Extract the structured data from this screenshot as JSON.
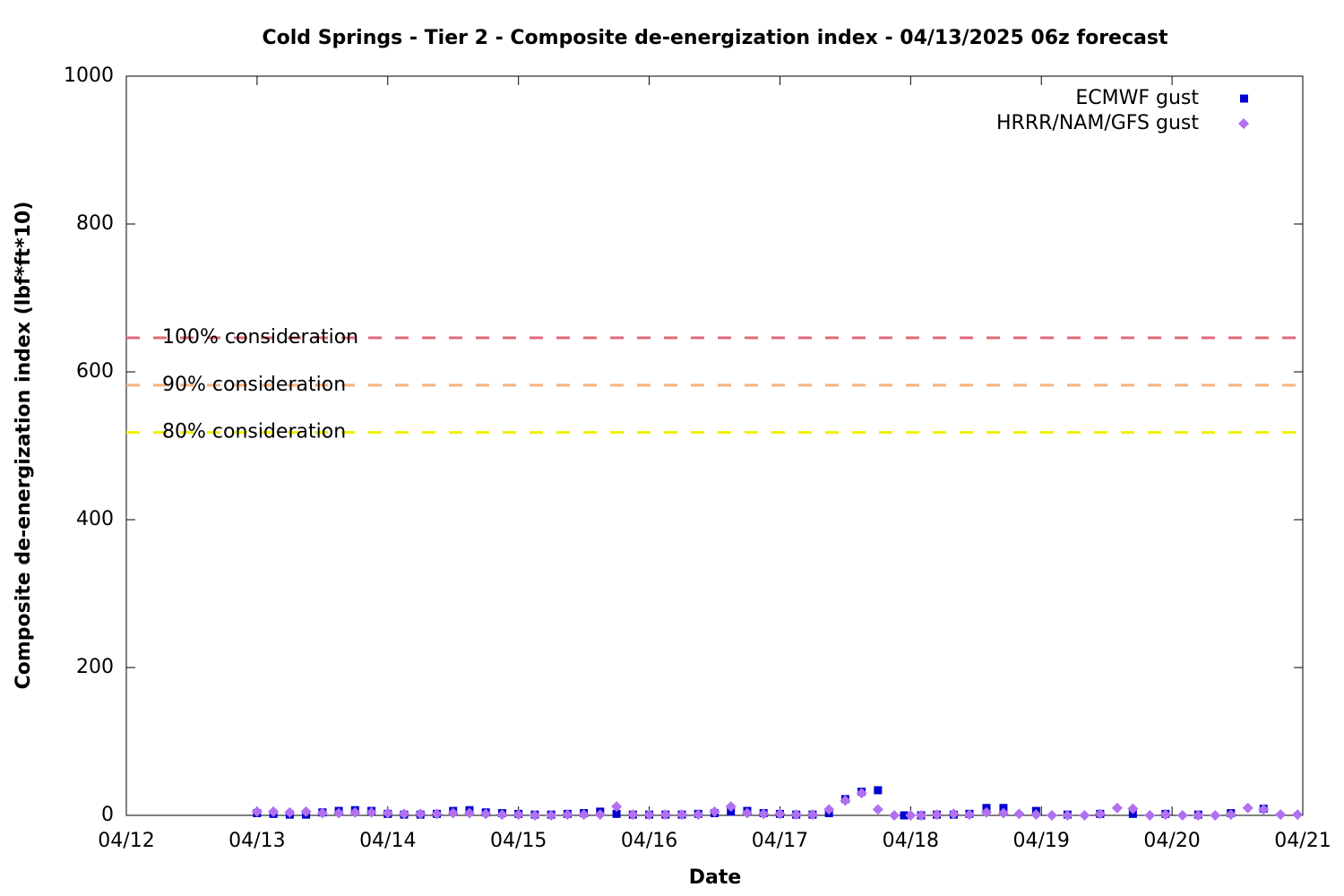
{
  "chart_data": {
    "type": "scatter",
    "title": "Cold Springs - Tier 2 - Composite de-energization index - 04/13/2025 06z forecast",
    "x_label": "Date",
    "y_label": "Composite de-energization index (lbf*ft*10)",
    "xlim": [
      0,
      9
    ],
    "xticks": [
      {
        "value": 0,
        "label": "04/12"
      },
      {
        "value": 1,
        "label": "04/13"
      },
      {
        "value": 2,
        "label": "04/14"
      },
      {
        "value": 3,
        "label": "04/15"
      },
      {
        "value": 4,
        "label": "04/16"
      },
      {
        "value": 5,
        "label": "04/17"
      },
      {
        "value": 6,
        "label": "04/18"
      },
      {
        "value": 7,
        "label": "04/19"
      },
      {
        "value": 8,
        "label": "04/20"
      },
      {
        "value": 9,
        "label": "04/21"
      }
    ],
    "ylim": [
      0,
      1000
    ],
    "yticks": [
      0,
      200,
      400,
      600,
      800,
      1000
    ],
    "legend": "top-right",
    "thresholds": [
      {
        "name": "100% consideration",
        "value": 646,
        "color": "#e06a7a"
      },
      {
        "name": "90% consideration",
        "value": 582,
        "color": "#f5b27e"
      },
      {
        "name": "80% consideration",
        "value": 518,
        "color": "#f0f000"
      }
    ],
    "series": [
      {
        "name": "ECMWF gust",
        "color": "#0000d0",
        "marker": "square",
        "x": [
          1.0,
          1.125,
          1.25,
          1.375,
          1.5,
          1.625,
          1.75,
          1.875,
          2.0,
          2.125,
          2.25,
          2.375,
          2.5,
          2.625,
          2.75,
          2.875,
          3.0,
          3.125,
          3.25,
          3.375,
          3.5,
          3.625,
          3.75,
          3.875,
          4.0,
          4.125,
          4.25,
          4.375,
          4.5,
          4.625,
          4.75,
          4.875,
          5.0,
          5.125,
          5.25,
          5.375,
          5.5,
          5.625,
          5.75,
          5.95,
          6.08,
          6.2,
          6.33,
          6.45,
          6.58,
          6.71,
          6.96,
          7.2,
          7.45,
          7.7,
          7.95,
          8.2,
          8.45,
          8.7
        ],
        "values": [
          3,
          2,
          1,
          1,
          4,
          6,
          7,
          6,
          2,
          1,
          1,
          2,
          6,
          7,
          4,
          3,
          2,
          1,
          1,
          2,
          3,
          5,
          2,
          1,
          1,
          1,
          1,
          2,
          3,
          5,
          6,
          3,
          2,
          1,
          1,
          3,
          22,
          32,
          34,
          0,
          0,
          1,
          1,
          2,
          10,
          10,
          6,
          1,
          2,
          2,
          2,
          1,
          3,
          9
        ]
      },
      {
        "name": "HRRR/NAM/GFS gust",
        "color": "#b070f0",
        "marker": "diamond",
        "x": [
          1.0,
          1.125,
          1.25,
          1.375,
          1.5,
          1.625,
          1.75,
          1.875,
          2.0,
          2.125,
          2.25,
          2.375,
          2.5,
          2.625,
          2.75,
          2.875,
          3.0,
          3.125,
          3.25,
          3.375,
          3.5,
          3.625,
          3.75,
          3.875,
          4.0,
          4.125,
          4.25,
          4.375,
          4.5,
          4.625,
          4.75,
          4.875,
          5.0,
          5.125,
          5.25,
          5.375,
          5.5,
          5.625,
          5.75,
          5.875,
          6.0,
          6.08,
          6.2,
          6.33,
          6.45,
          6.58,
          6.71,
          6.83,
          6.96,
          7.08,
          7.2,
          7.33,
          7.45,
          7.58,
          7.7,
          7.83,
          7.95,
          8.08,
          8.2,
          8.33,
          8.45,
          8.58,
          8.7,
          8.83,
          8.96
        ],
        "values": [
          5,
          5,
          4,
          5,
          3,
          3,
          4,
          4,
          3,
          2,
          2,
          2,
          3,
          3,
          2,
          1,
          1,
          0,
          0,
          1,
          1,
          1,
          12,
          1,
          1,
          1,
          1,
          1,
          5,
          12,
          3,
          2,
          2,
          1,
          1,
          8,
          20,
          30,
          8,
          0,
          0,
          0,
          1,
          2,
          1,
          4,
          3,
          2,
          1,
          0,
          0,
          0,
          2,
          10,
          9,
          0,
          1,
          0,
          0,
          0,
          1,
          10,
          8,
          1,
          1
        ]
      }
    ]
  }
}
